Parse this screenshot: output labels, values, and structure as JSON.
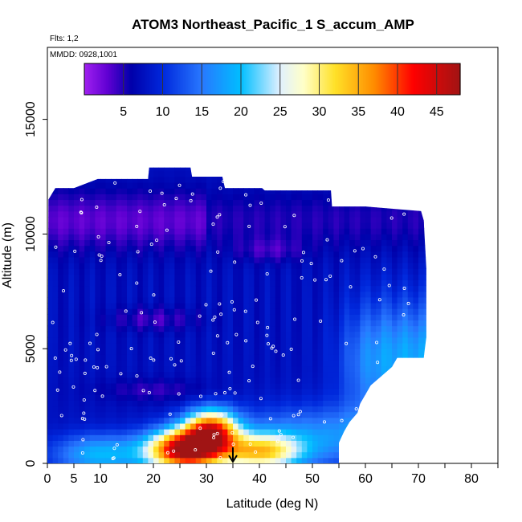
{
  "chart_data": {
    "type": "heatmap",
    "title": "ATOM3 Northeast_Pacific_1 S_accum_AMP",
    "subtitle_flights": "Flts: 1,2",
    "annotation_mmdd": "MMDD: 0928,1001",
    "xlabel": "Latitude (deg N)",
    "ylabel": "Altitude (m)",
    "xlim": [
      0,
      85
    ],
    "ylim": [
      0,
      17500
    ],
    "x_ticks": [
      0,
      5,
      10,
      20,
      30,
      40,
      50,
      60,
      70,
      80
    ],
    "x_minor_ticks": [
      15,
      25,
      35,
      45,
      55,
      65,
      75,
      85
    ],
    "y_ticks": [
      0,
      5000,
      10000,
      15000
    ],
    "colorbar": {
      "ticks": [
        5,
        10,
        15,
        20,
        25,
        30,
        35,
        40,
        45
      ],
      "range": [
        0,
        48
      ],
      "boundaries": [
        5,
        10,
        15,
        20,
        25,
        30,
        35,
        40,
        45
      ]
    },
    "arrow_marker": {
      "latitude": 35,
      "label": ""
    },
    "columns": [
      {
        "lat": 0.2,
        "top": 11500
      },
      {
        "lat": 1.5,
        "top": 12000
      },
      {
        "lat": 5,
        "top": 12000
      },
      {
        "lat": 9.5,
        "top": 12400
      },
      {
        "lat": 15,
        "top": 12400
      },
      {
        "lat": 19,
        "top": 12400
      },
      {
        "lat": 19.2,
        "top": 12900
      },
      {
        "lat": 27,
        "top": 12900
      },
      {
        "lat": 27.3,
        "top": 12500
      },
      {
        "lat": 33,
        "top": 12500
      },
      {
        "lat": 33.5,
        "top": 12000
      },
      {
        "lat": 40.5,
        "top": 12000
      },
      {
        "lat": 41,
        "top": 11900
      },
      {
        "lat": 53.5,
        "top": 11900
      },
      {
        "lat": 53.7,
        "top": 11200
      },
      {
        "lat": 60,
        "top": 11200
      },
      {
        "lat": 70.5,
        "top": 11000
      },
      {
        "lat": 71,
        "top": 10600
      },
      {
        "lat": 71.5,
        "top": 8500
      },
      {
        "lat": 71.5,
        "top": 5500
      },
      {
        "lat": 71,
        "top": 4600
      },
      {
        "lat": 66,
        "top": 4600
      },
      {
        "lat": 65,
        "top": 4200
      },
      {
        "lat": 63,
        "top": 3800
      },
      {
        "lat": 61,
        "top": 3400
      },
      {
        "lat": 60,
        "top": 3000
      },
      {
        "lat": 59,
        "top": 2600
      },
      {
        "lat": 58.5,
        "top": 2200
      },
      {
        "lat": 57,
        "top": 1800
      },
      {
        "lat": 56,
        "top": 1400
      },
      {
        "lat": 55,
        "top": 900
      },
      {
        "lat": 55,
        "top": 0
      }
    ],
    "field_features": [
      {
        "name": "surface_max",
        "lat_center": 26,
        "alt_center": 600,
        "lat_width": 7,
        "alt_width": 900,
        "value": 47
      },
      {
        "name": "surface_core",
        "lat_center": 31,
        "alt_center": 1500,
        "lat_width": 5,
        "alt_width": 900,
        "value": 40
      },
      {
        "name": "outflow_tail",
        "lat_center": 40,
        "alt_center": 500,
        "lat_width": 8,
        "alt_width": 800,
        "value": 32
      },
      {
        "name": "boundary_layer_south",
        "lat_center": 8,
        "alt_center": 600,
        "lat_width": 6,
        "alt_width": 900,
        "value": 18
      },
      {
        "name": "mid_levels_north",
        "lat_center": 63,
        "alt_center": 5000,
        "lat_width": 8,
        "alt_width": 2000,
        "value": 17
      },
      {
        "name": "upper_trop_clean",
        "lat_center": 15,
        "alt_center": 10500,
        "lat_width": 12,
        "alt_width": 1200,
        "value": 1.5
      }
    ]
  }
}
